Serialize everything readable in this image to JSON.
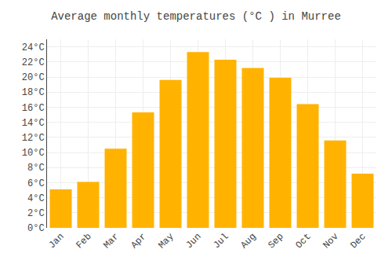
{
  "chart_data": {
    "type": "bar",
    "title": "Average monthly temperatures (°C ) in Murree",
    "categories": [
      "Jan",
      "Feb",
      "Mar",
      "Apr",
      "May",
      "Jun",
      "Jul",
      "Aug",
      "Sep",
      "Oct",
      "Nov",
      "Dec"
    ],
    "values": [
      5.1,
      6.1,
      10.5,
      15.3,
      19.6,
      23.3,
      22.3,
      21.2,
      19.9,
      16.4,
      11.6,
      7.2
    ],
    "color": "#FFB300",
    "ylim": [
      0,
      25
    ],
    "yticks": [
      {
        "value": 0,
        "label": "0°C"
      },
      {
        "value": 2,
        "label": "2°C"
      },
      {
        "value": 4,
        "label": "4°C"
      },
      {
        "value": 6,
        "label": "6°C"
      },
      {
        "value": 8,
        "label": "8°C"
      },
      {
        "value": 10,
        "label": "10°C"
      },
      {
        "value": 12,
        "label": "12°C"
      },
      {
        "value": 14,
        "label": "14°C"
      },
      {
        "value": 16,
        "label": "16°C"
      },
      {
        "value": 18,
        "label": "18°C"
      },
      {
        "value": 20,
        "label": "20°C"
      },
      {
        "value": 22,
        "label": "22°C"
      },
      {
        "value": 24,
        "label": "24°C"
      }
    ],
    "grid": true
  }
}
